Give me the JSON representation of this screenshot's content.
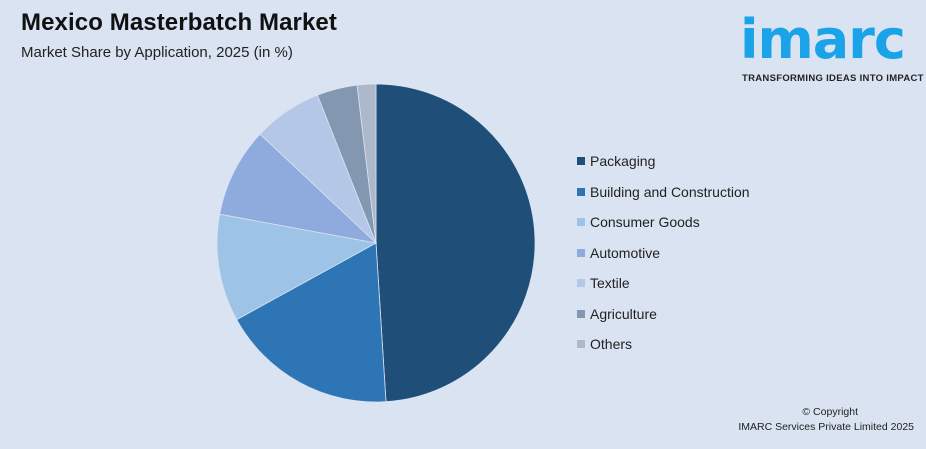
{
  "header": {
    "title": "Mexico Masterbatch Market",
    "subtitle": "Market Share by Application, 2025 (in %)"
  },
  "logo": {
    "word": "imarc",
    "tagline": "TRANSFORMING IDEAS INTO IMPACT",
    "color": "#1aa3e8"
  },
  "legend": {
    "items": [
      {
        "label": "Packaging",
        "color": "#1f4e79"
      },
      {
        "label": "Building and Construction",
        "color": "#2e75b6"
      },
      {
        "label": "Consumer Goods",
        "color": "#9dc3e6"
      },
      {
        "label": "Automotive",
        "color": "#8faadc"
      },
      {
        "label": "Textile",
        "color": "#b4c7e7"
      },
      {
        "label": "Agriculture",
        "color": "#8497b0"
      },
      {
        "label": "Others",
        "color": "#adb9ca"
      }
    ]
  },
  "footer": {
    "copyright": "© Copyright",
    "company": "IMARC Services Private Limited 2025"
  },
  "chart_data": {
    "type": "pie",
    "title": "Mexico Masterbatch Market",
    "subtitle": "Market Share by Application, 2025 (in %)",
    "categories": [
      "Packaging",
      "Building and Construction",
      "Consumer Goods",
      "Automotive",
      "Textile",
      "Agriculture",
      "Others"
    ],
    "values": [
      49.0,
      18.0,
      10.9,
      9.1,
      7.0,
      4.1,
      1.9
    ],
    "colors": [
      "#1f4e79",
      "#2e75b6",
      "#9dc3e6",
      "#8faadc",
      "#b4c7e7",
      "#8497b0",
      "#adb9ca"
    ],
    "start_angle_deg": 0,
    "direction": "clockwise",
    "legend_position": "right",
    "data_labels": false
  }
}
